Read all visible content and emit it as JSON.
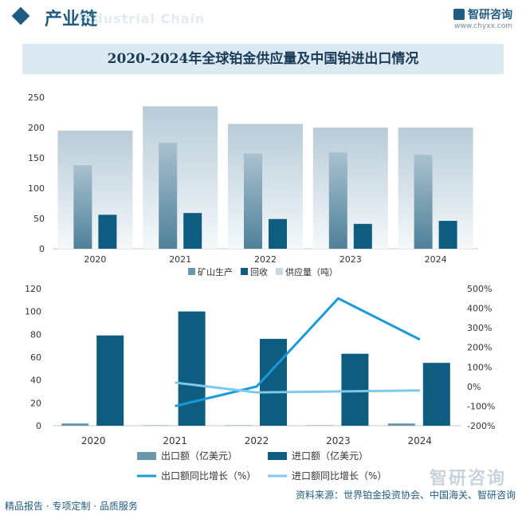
{
  "header": {
    "title": "产业链",
    "ghost_text": "Industrial Chain"
  },
  "brand": {
    "name": "智研咨询",
    "url": "www.chyxx.com"
  },
  "chart_title": "2020-2024年全球铂金供应量及中国铂进出口情况",
  "chart_data": [
    {
      "type": "bar",
      "categories": [
        "2020",
        "2021",
        "2022",
        "2023",
        "2024"
      ],
      "series": [
        {
          "name": "矿山生产",
          "values": [
            138,
            175,
            157,
            159,
            155
          ],
          "color": "#6b97ad"
        },
        {
          "name": "回收",
          "values": [
            56,
            59,
            49,
            41,
            46
          ],
          "color": "#0e5d80"
        },
        {
          "name": "供应量（吨）",
          "values": [
            195,
            235,
            206,
            200,
            200
          ],
          "color": "#c9d9e2"
        }
      ],
      "ylim": [
        0,
        250
      ],
      "yticks": [
        "0",
        "50",
        "100",
        "150",
        "200",
        "250"
      ],
      "legend": "bottom"
    },
    {
      "type": "bar+line",
      "categories": [
        "2020",
        "2021",
        "2022",
        "2023",
        "2024"
      ],
      "bar_series": [
        {
          "name": "出口额（亿美元）",
          "values": [
            2,
            0.3,
            0.3,
            0.3,
            2
          ],
          "color": "#6b97ad"
        },
        {
          "name": "进口额（亿美元）",
          "values": [
            79,
            100,
            76,
            63,
            55
          ],
          "color": "#0e5d80"
        }
      ],
      "line_series": [
        {
          "name": "出口额同比增长（%）",
          "values": [
            null,
            -100,
            0,
            450,
            240
          ],
          "color": "#1a9bd7"
        },
        {
          "name": "进口额同比增长（%）",
          "values": [
            null,
            20,
            -30,
            -25,
            -20
          ],
          "color": "#7ec8ec"
        }
      ],
      "ylim_left": [
        0,
        120
      ],
      "yticks_left": [
        "0",
        "20",
        "40",
        "60",
        "80",
        "100",
        "120"
      ],
      "ylim_right": [
        -200,
        500
      ],
      "yticks_right": [
        "-200%",
        "-100%",
        "0%",
        "100%",
        "200%",
        "300%",
        "400%",
        "500%"
      ],
      "legend": "bottom"
    }
  ],
  "footer": {
    "left": "精品报告 · 专项定制 · 品质服务",
    "source": "资料来源：世界铂金投资协会、中国海关、智研咨询"
  }
}
